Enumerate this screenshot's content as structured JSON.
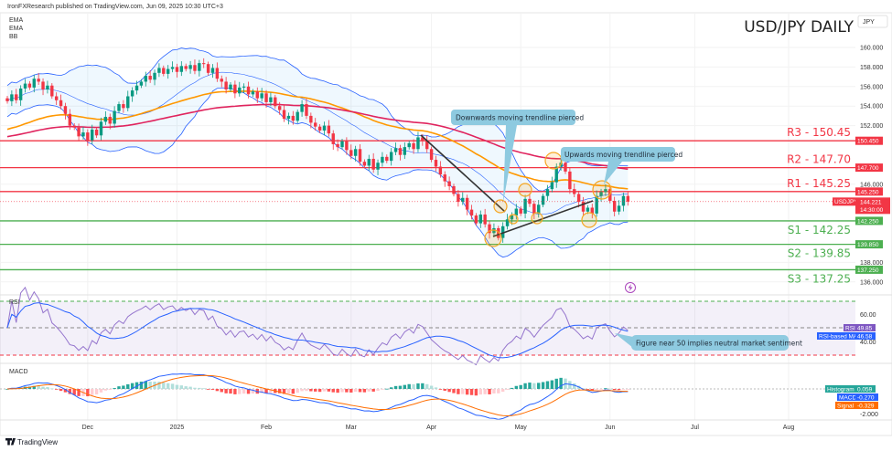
{
  "header": {
    "published": "IronFXResearch published on TradingView.com, Jun 09, 2025 10:30 UTC+3"
  },
  "legend": [
    "EMA",
    "EMA",
    "BB"
  ],
  "title": "USD/JPY DAILY",
  "currency": "JPY",
  "footer": {
    "brand": "TradingView"
  },
  "colors": {
    "up": "#089981",
    "down": "#f23645",
    "ema_fast": "#ff9800",
    "ema_slow": "#e0245e",
    "bb": "#2962ff",
    "resistance": "#f23645",
    "support": "#4caf50",
    "rsi": "#9575cd",
    "rsi_ma": "#2962ff",
    "macd": "#2962ff",
    "signal": "#ff6d00"
  },
  "levels": [
    {
      "name": "R3",
      "label": "R3 - 150.45",
      "value": 150.45,
      "badge": "150.450",
      "type": "resistance"
    },
    {
      "name": "R2",
      "label": "R2 - 147.70",
      "value": 147.7,
      "badge": "147.700",
      "type": "resistance"
    },
    {
      "name": "R1",
      "label": "R1 - 145.25",
      "value": 145.25,
      "badge": "145.250",
      "type": "resistance"
    },
    {
      "name": "S1",
      "label": "S1 - 142.25",
      "value": 142.25,
      "badge": "142.250",
      "type": "support"
    },
    {
      "name": "S2",
      "label": "S2 - 139.85",
      "value": 139.85,
      "badge": "139.850",
      "type": "support"
    },
    {
      "name": "S3",
      "label": "S3 - 137.25",
      "value": 137.25,
      "badge": "137.250",
      "type": "support"
    }
  ],
  "last_price": {
    "symbol": "USDJPY",
    "value": 144.221,
    "price": "144.221",
    "countdown": "14:30:00"
  },
  "annotations": {
    "down": "Downwards moving trendline  pierced",
    "up": "Upwards moving trendline pierced",
    "rsi": "Figure near 50 implies neutral market sentiment"
  },
  "indicators": {
    "rsi": {
      "title": "RSI",
      "label": "RSI",
      "value": "49.85",
      "ma_label": "RSI-based MA",
      "ma_value": "46.58",
      "ticks": [
        "60.00",
        "40.00"
      ]
    },
    "macd": {
      "title": "MACD",
      "hist_label": "Histogram",
      "hist_value": "0.059",
      "macd_label": "MACD",
      "macd_value": "-0.270",
      "signal_label": "Signal",
      "signal_value": "-0.329",
      "ticks": [
        "-2.000"
      ]
    }
  },
  "chart_data": {
    "type": "candlestick",
    "title": "USD/JPY DAILY",
    "ylim": [
      135,
      162
    ],
    "price_ticks": [
      "160.000",
      "158.000",
      "156.000",
      "154.000",
      "152.000",
      "146.000",
      "138.000",
      "136.000"
    ],
    "price_tick_values": [
      160,
      158,
      156,
      154,
      152,
      146,
      138,
      136
    ],
    "x_ticks": [
      {
        "label": "Dec",
        "index": 18
      },
      {
        "label": "2025",
        "index": 38
      },
      {
        "label": "Feb",
        "index": 58
      },
      {
        "label": "Mar",
        "index": 77
      },
      {
        "label": "Apr",
        "index": 95
      },
      {
        "label": "May",
        "index": 115
      },
      {
        "label": "Jun",
        "index": 135
      },
      {
        "label": "Jul",
        "index": 154
      },
      {
        "label": "Aug",
        "index": 175
      }
    ],
    "ema_fast_start": 151.5,
    "ema_slow_start": 150.8,
    "closes": [
      154.5,
      155.2,
      154.6,
      155.8,
      156.3,
      155.9,
      156.8,
      156.5,
      155.7,
      156.1,
      155.0,
      154.6,
      154.0,
      153.2,
      152.0,
      151.8,
      150.9,
      151.3,
      150.5,
      151.6,
      151.0,
      152.4,
      152.9,
      152.2,
      153.5,
      154.2,
      153.8,
      155.0,
      155.6,
      156.1,
      156.5,
      157.1,
      156.7,
      157.4,
      157.9,
      157.3,
      157.8,
      158.0,
      157.5,
      158.1,
      157.8,
      158.2,
      157.6,
      158.4,
      158.3,
      157.4,
      157.9,
      156.8,
      156.5,
      155.7,
      156.2,
      155.3,
      155.9,
      156.0,
      155.2,
      155.5,
      154.8,
      155.3,
      154.4,
      154.9,
      154.0,
      153.6,
      152.7,
      153.0,
      152.5,
      153.4,
      154.2,
      153.0,
      152.3,
      151.9,
      151.5,
      152.0,
      151.2,
      150.1,
      149.8,
      150.4,
      149.5,
      148.9,
      149.6,
      148.3,
      147.9,
      148.6,
      147.5,
      148.2,
      148.8,
      148.4,
      149.3,
      149.7,
      149.0,
      149.8,
      150.2,
      149.6,
      150.8,
      150.5,
      149.6,
      148.5,
      147.8,
      147.0,
      146.3,
      145.8,
      145.0,
      144.2,
      144.6,
      143.4,
      142.8,
      142.0,
      142.9,
      141.9,
      141.0,
      141.5,
      140.5,
      141.7,
      142.4,
      142.8,
      143.5,
      143.0,
      144.5,
      144.0,
      143.0,
      143.9,
      144.8,
      145.5,
      146.2,
      147.8,
      148.2,
      147.3,
      145.5,
      145.0,
      144.2,
      143.2,
      143.6,
      143.0,
      144.8,
      145.2,
      145.5,
      144.3,
      143.2,
      143.8,
      144.8,
      144.221
    ]
  }
}
